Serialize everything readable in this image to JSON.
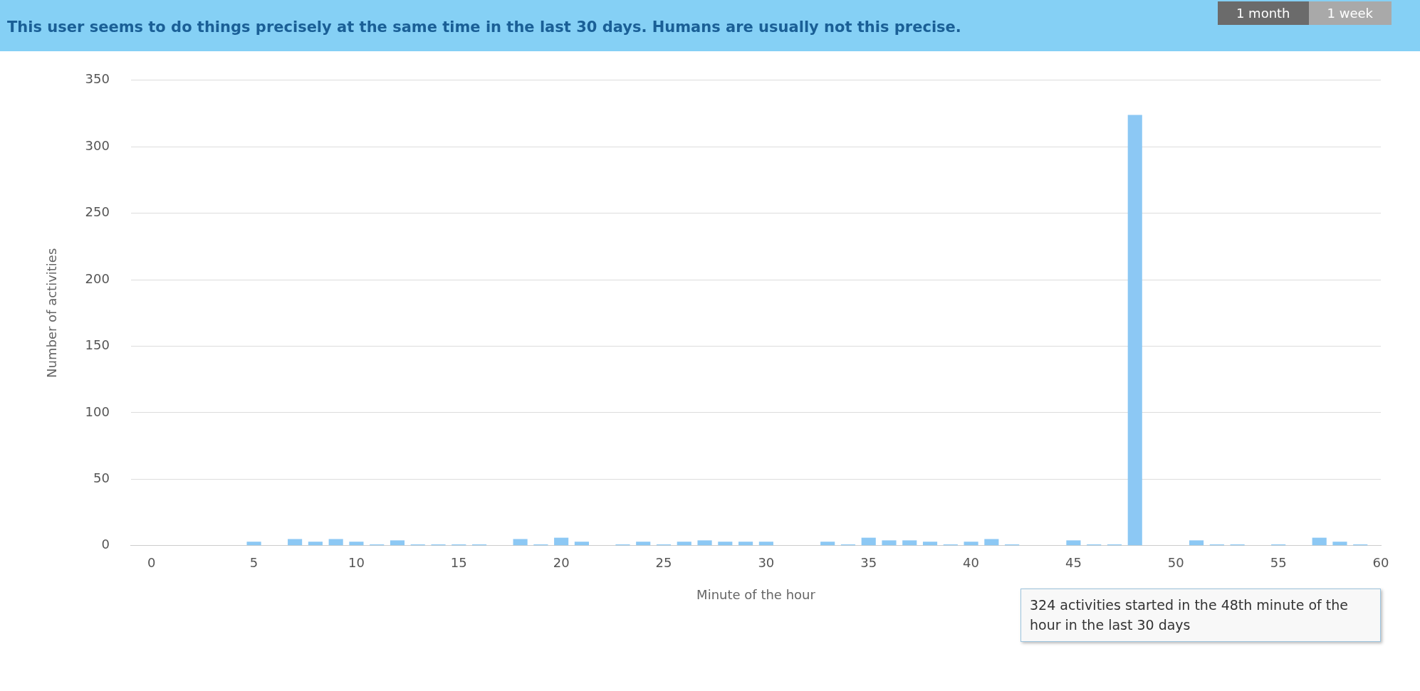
{
  "chart_data": {
    "type": "bar",
    "title": "This user seems to do things precisely at the same time in the last 30 days. Humans are usually not this precise.",
    "xlabel": "Minute of the hour",
    "ylabel": "Number of activities",
    "x": [
      0,
      1,
      2,
      3,
      4,
      5,
      6,
      7,
      8,
      9,
      10,
      11,
      12,
      13,
      14,
      15,
      16,
      17,
      18,
      19,
      20,
      21,
      22,
      23,
      24,
      25,
      26,
      27,
      28,
      29,
      30,
      31,
      32,
      33,
      34,
      35,
      36,
      37,
      38,
      39,
      40,
      41,
      42,
      43,
      44,
      45,
      46,
      47,
      48,
      49,
      50,
      51,
      52,
      53,
      54,
      55,
      56,
      57,
      58,
      59
    ],
    "values": [
      0,
      0,
      0,
      0,
      0,
      3,
      0,
      5,
      3,
      5,
      3,
      1,
      4,
      1,
      1,
      1,
      1,
      0,
      5,
      1,
      6,
      3,
      0,
      1,
      3,
      1,
      3,
      4,
      3,
      3,
      3,
      0,
      0,
      3,
      1,
      6,
      4,
      4,
      3,
      1,
      3,
      5,
      1,
      0,
      0,
      4,
      1,
      1,
      324,
      0,
      0,
      4,
      1,
      1,
      0,
      1,
      0,
      6,
      3,
      1
    ],
    "color": "#8cc8f4",
    "xlim": [
      -1,
      60
    ],
    "xticks": [
      0,
      5,
      10,
      15,
      20,
      25,
      30,
      35,
      40,
      45,
      50,
      55,
      60
    ],
    "ylim": [
      0,
      350
    ],
    "yticks": [
      0,
      50,
      100,
      150,
      200,
      250,
      300,
      350
    ],
    "grid": "y",
    "legend": false,
    "annotations": [
      "324 activities started in the 48th minute of the hour in the last 30 days",
      "1 month",
      "1 week"
    ]
  }
}
